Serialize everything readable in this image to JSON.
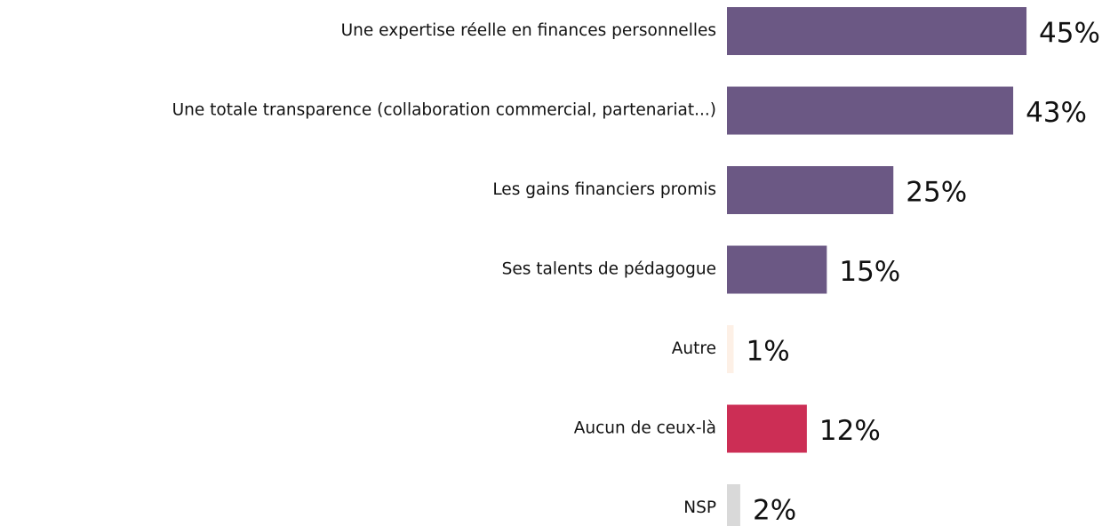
{
  "chart_data": {
    "type": "bar",
    "orientation": "horizontal",
    "categories": [
      "Une expertise réelle en finances personnelles",
      "Une totale transparence (collaboration commercial, partenariat...)",
      "Les gains financiers promis",
      "Ses talents de pédagogue",
      "Autre",
      "Aucun de ceux-là",
      "NSP"
    ],
    "values": [
      45,
      43,
      25,
      15,
      1,
      12,
      2
    ],
    "value_labels": [
      "45%",
      "43%",
      "25%",
      "15%",
      "1%",
      "12%",
      "2%"
    ],
    "colors": [
      "#6b5884",
      "#6b5884",
      "#6b5884",
      "#6b5884",
      "#fdf0e6",
      "#cc2e55",
      "#d9d9d9"
    ]
  }
}
